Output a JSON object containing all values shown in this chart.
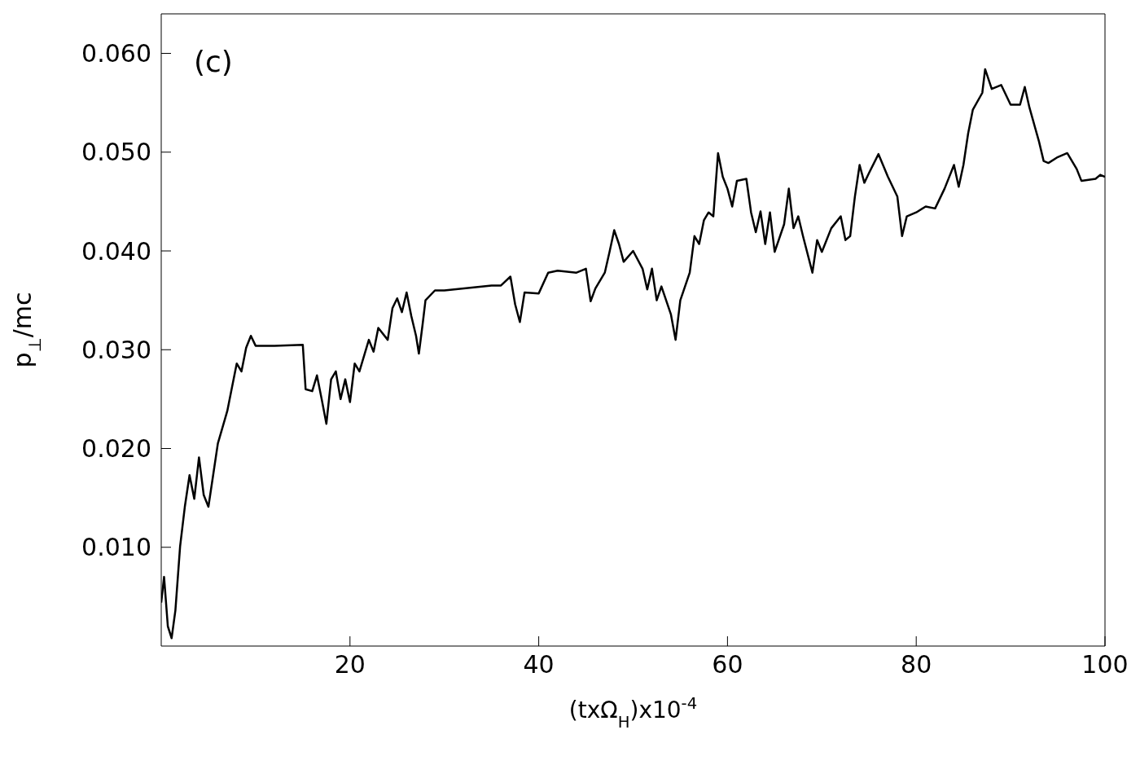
{
  "chart_data": {
    "type": "line",
    "xlabel": "(txΩ$_{H}$)x10$^{-4}$",
    "ylabel": "p$_{⊥}$/mc",
    "annotations": [
      "(c)"
    ],
    "x": [
      0,
      0.3,
      0.7,
      1.1,
      1.5,
      2,
      2.5,
      3,
      3.5,
      4,
      4.5,
      5,
      5.5,
      6,
      7,
      7.5,
      8,
      8.5,
      9,
      9.5,
      10,
      12,
      15,
      15.3,
      16,
      16.5,
      17,
      17.5,
      18,
      18.5,
      19,
      19.5,
      20,
      20.5,
      21,
      22,
      22.5,
      23,
      24,
      24.5,
      25,
      25.5,
      26,
      26.5,
      27,
      27.3,
      27.7,
      28,
      29,
      30,
      35,
      36,
      37,
      37.5,
      38,
      38.5,
      40,
      41,
      42,
      44,
      45,
      45.5,
      46,
      47,
      47.5,
      48,
      48.5,
      49,
      50,
      51,
      51.5,
      52,
      52.5,
      53,
      54,
      54.5,
      55,
      56,
      56.5,
      57,
      57.5,
      58,
      58.5,
      59,
      59.5,
      60,
      60.5,
      61,
      62,
      62.5,
      63,
      63.5,
      64,
      64.5,
      65,
      66,
      66.5,
      67,
      67.5,
      68,
      69,
      69.5,
      70,
      71,
      72,
      72.5,
      73,
      73.5,
      74,
      74.5,
      75,
      76,
      77,
      78,
      78.5,
      79,
      80,
      81,
      82,
      83,
      84,
      84.5,
      85,
      85.5,
      86,
      87,
      87.3,
      88,
      89,
      90,
      91,
      91.5,
      92,
      93,
      93.5,
      94,
      95,
      96,
      97,
      97.5,
      99,
      99.5,
      100
    ],
    "series": [
      {
        "color": "#000000",
        "values": [
          0.0044,
          0.007,
          0.002,
          0.0008,
          0.0036,
          0.0101,
          0.0141,
          0.0173,
          0.0149,
          0.0191,
          0.0153,
          0.0141,
          0.0173,
          0.0205,
          0.0238,
          0.0262,
          0.0286,
          0.0278,
          0.0302,
          0.0314,
          0.0304,
          0.0304,
          0.0305,
          0.026,
          0.0258,
          0.0274,
          0.025,
          0.0225,
          0.027,
          0.0278,
          0.025,
          0.027,
          0.0247,
          0.0286,
          0.0278,
          0.031,
          0.0298,
          0.0322,
          0.031,
          0.0342,
          0.0352,
          0.0338,
          0.0358,
          0.0334,
          0.0314,
          0.0296,
          0.0326,
          0.035,
          0.036,
          0.036,
          0.0365,
          0.0365,
          0.0374,
          0.0346,
          0.0328,
          0.0358,
          0.0357,
          0.0378,
          0.038,
          0.0378,
          0.0382,
          0.0349,
          0.0362,
          0.0378,
          0.0399,
          0.0421,
          0.0407,
          0.0389,
          0.04,
          0.0382,
          0.0361,
          0.0382,
          0.035,
          0.0364,
          0.0336,
          0.031,
          0.035,
          0.0378,
          0.0415,
          0.0407,
          0.0431,
          0.0439,
          0.0435,
          0.0499,
          0.0475,
          0.0463,
          0.0445,
          0.0471,
          0.0473,
          0.0439,
          0.0419,
          0.044,
          0.0407,
          0.0439,
          0.0399,
          0.0427,
          0.0463,
          0.0423,
          0.0435,
          0.0415,
          0.0378,
          0.0411,
          0.0399,
          0.0423,
          0.0435,
          0.0411,
          0.0415,
          0.0455,
          0.0487,
          0.0469,
          0.0479,
          0.0498,
          0.0475,
          0.0455,
          0.0415,
          0.0435,
          0.0439,
          0.0445,
          0.0443,
          0.0463,
          0.0487,
          0.0465,
          0.0487,
          0.0519,
          0.0543,
          0.056,
          0.0584,
          0.0564,
          0.0568,
          0.0548,
          0.0548,
          0.0566,
          0.0545,
          0.0511,
          0.0491,
          0.0489,
          0.0495,
          0.0499,
          0.0483,
          0.0471,
          0.0473,
          0.0477,
          0.0475
        ]
      }
    ],
    "xlim": [
      0,
      100
    ],
    "xticks": [
      20,
      40,
      60,
      80,
      100
    ],
    "ylim": [
      0,
      0.064
    ],
    "yticks": [
      {
        "value": 0.01,
        "label": "0.010"
      },
      {
        "value": 0.02,
        "label": "0.020"
      },
      {
        "value": 0.03,
        "label": "0.030"
      },
      {
        "value": 0.04,
        "label": "0.040"
      },
      {
        "value": 0.05,
        "label": "0.050"
      },
      {
        "value": 0.06,
        "label": "0.060"
      }
    ],
    "grid": false,
    "legend": false,
    "marker": "none",
    "line_style": "solid"
  }
}
